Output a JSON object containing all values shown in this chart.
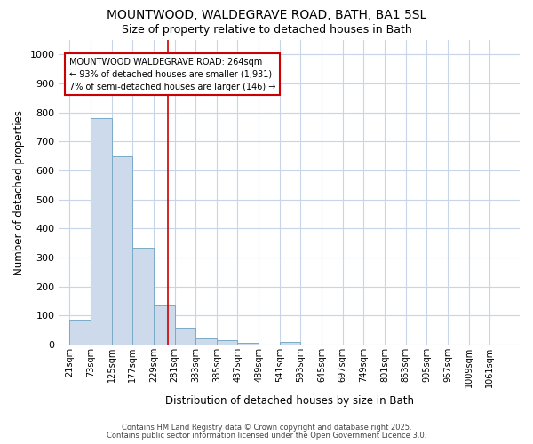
{
  "title_line1": "MOUNTWOOD, WALDEGRAVE ROAD, BATH, BA1 5SL",
  "title_line2": "Size of property relative to detached houses in Bath",
  "xlabel": "Distribution of detached houses by size in Bath",
  "ylabel": "Number of detached properties",
  "bin_labels": [
    "21sqm",
    "73sqm",
    "125sqm",
    "177sqm",
    "229sqm",
    "281sqm",
    "333sqm",
    "385sqm",
    "437sqm",
    "489sqm",
    "541sqm",
    "593sqm",
    "645sqm",
    "697sqm",
    "749sqm",
    "801sqm",
    "853sqm",
    "905sqm",
    "957sqm",
    "1009sqm",
    "1061sqm"
  ],
  "bin_left": [
    21,
    73,
    125,
    177,
    229,
    281,
    333,
    385,
    437,
    489,
    541,
    593,
    645,
    697,
    749,
    801,
    853,
    905,
    957,
    1009,
    1061
  ],
  "bin_width": 52,
  "bar_values": [
    85,
    780,
    650,
    335,
    135,
    60,
    22,
    15,
    8,
    0,
    10,
    0,
    0,
    0,
    0,
    0,
    0,
    0,
    0,
    0,
    0
  ],
  "bar_color": "#ccdaec",
  "bar_edge_color": "#7aaac8",
  "red_line_x": 264,
  "ylim": [
    0,
    1050
  ],
  "xlim_left": -5,
  "xlim_right": 1135,
  "yticks": [
    0,
    100,
    200,
    300,
    400,
    500,
    600,
    700,
    800,
    900,
    1000
  ],
  "grid_color": "#c8d4e8",
  "bg_color": "#ffffff",
  "plot_bg_color": "#ffffff",
  "annotation_text": "MOUNTWOOD WALDEGRAVE ROAD: 264sqm\n← 93% of detached houses are smaller (1,931)\n7% of semi-detached houses are larger (146) →",
  "annotation_box_facecolor": "#ffffff",
  "annotation_box_edgecolor": "#cc0000",
  "footer_line1": "Contains HM Land Registry data © Crown copyright and database right 2025.",
  "footer_line2": "Contains public sector information licensed under the Open Government Licence 3.0."
}
